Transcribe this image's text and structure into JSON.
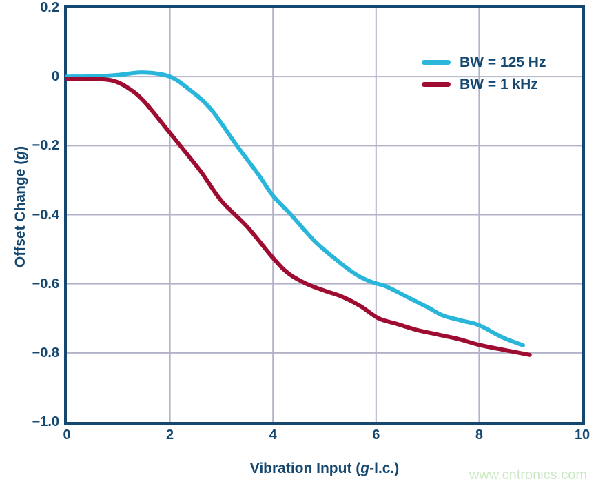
{
  "figure": {
    "watermark": "www.cntronics.com",
    "background": "#FFFFFF"
  },
  "colors": {
    "axis_navy": "#154870",
    "grid_gray": "#B2B2C9",
    "series_cyan": "#29B6DA",
    "series_crimson": "#9E0D31",
    "watermark_green": "#CBE9C4"
  },
  "chart_data": {
    "type": "line",
    "title": "",
    "xlabel": "Vibration Input (g-l.c.)",
    "ylabel": "Offset Change (g)",
    "xlabel_parts": {
      "pre": "Vibration Input (",
      "italic": "g",
      "post": "-l.c.)"
    },
    "ylabel_parts": {
      "pre": "Offset Change (",
      "italic": "g",
      "post": ")"
    },
    "xlim": [
      0,
      10
    ],
    "ylim": [
      -1.0,
      0.2
    ],
    "x_ticks": [
      0,
      2,
      4,
      6,
      8,
      10
    ],
    "x_tick_labels": [
      "0",
      "2",
      "4",
      "6",
      "8",
      "10"
    ],
    "y_ticks": [
      0.2,
      0,
      -0.2,
      -0.4,
      -0.6,
      -0.8,
      -1.0
    ],
    "y_tick_labels": [
      "0.2",
      "0",
      "−0.2",
      "−0.4",
      "−0.6",
      "−0.8",
      "−1.0"
    ],
    "grid": true,
    "legend_position": "upper right",
    "series": [
      {
        "name": "BW = 125 Hz",
        "color": "#29B6DA",
        "points": [
          [
            0,
            0
          ],
          [
            0.6,
            0.001
          ],
          [
            1.0,
            0.005
          ],
          [
            1.5,
            0.012
          ],
          [
            2.0,
            0.0
          ],
          [
            2.4,
            -0.04
          ],
          [
            2.8,
            -0.095
          ],
          [
            3.3,
            -0.2
          ],
          [
            3.7,
            -0.28
          ],
          [
            4.0,
            -0.345
          ],
          [
            4.35,
            -0.4
          ],
          [
            4.8,
            -0.475
          ],
          [
            5.2,
            -0.527
          ],
          [
            5.6,
            -0.572
          ],
          [
            5.9,
            -0.594
          ],
          [
            6.2,
            -0.608
          ],
          [
            6.6,
            -0.638
          ],
          [
            7.0,
            -0.668
          ],
          [
            7.3,
            -0.692
          ],
          [
            7.7,
            -0.708
          ],
          [
            8.0,
            -0.72
          ],
          [
            8.45,
            -0.755
          ],
          [
            8.85,
            -0.778
          ]
        ]
      },
      {
        "name": "BW = 1 kHz",
        "color": "#9E0D31",
        "points": [
          [
            0,
            -0.006
          ],
          [
            0.5,
            -0.006
          ],
          [
            0.9,
            -0.012
          ],
          [
            1.2,
            -0.034
          ],
          [
            1.5,
            -0.072
          ],
          [
            2.0,
            -0.163
          ],
          [
            2.2,
            -0.2
          ],
          [
            2.6,
            -0.275
          ],
          [
            3.0,
            -0.36
          ],
          [
            3.5,
            -0.435
          ],
          [
            4.0,
            -0.525
          ],
          [
            4.3,
            -0.57
          ],
          [
            4.65,
            -0.6
          ],
          [
            5.0,
            -0.62
          ],
          [
            5.35,
            -0.638
          ],
          [
            5.7,
            -0.665
          ],
          [
            6.05,
            -0.7
          ],
          [
            6.4,
            -0.716
          ],
          [
            6.8,
            -0.734
          ],
          [
            7.2,
            -0.747
          ],
          [
            7.6,
            -0.76
          ],
          [
            8.0,
            -0.777
          ],
          [
            8.5,
            -0.792
          ],
          [
            8.98,
            -0.806
          ]
        ]
      }
    ]
  }
}
